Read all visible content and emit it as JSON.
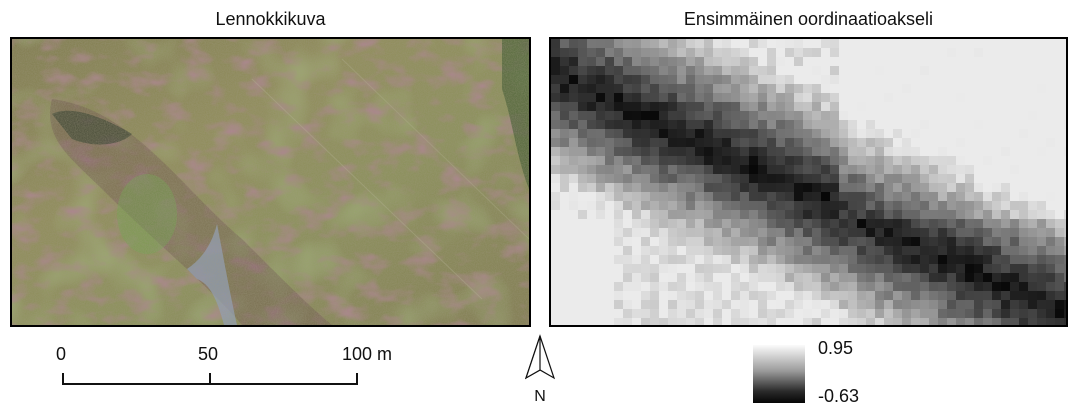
{
  "panels": {
    "aerial": {
      "title": "Lennokkikuva"
    },
    "ordination": {
      "title": "Ensimmäinen oordinaatioakseli"
    }
  },
  "scalebar": {
    "ticks": [
      "0",
      "50",
      "100 m"
    ]
  },
  "north_arrow": {
    "label": "N"
  },
  "legend": {
    "max_label": "0.95",
    "min_label": "-0.63",
    "max_value": 0.95,
    "min_value": -0.63,
    "color_high": "#fbfbfb",
    "color_low": "#050505"
  },
  "colors": {
    "aerial_base": "#8c8a52",
    "aerial_green": "#6fa34a",
    "aerial_purple": "#6b3d4a",
    "water_blue": "#8fa0c0",
    "ordination_dark": "#0a0a0a",
    "ordination_light": "#d8d8d8"
  }
}
